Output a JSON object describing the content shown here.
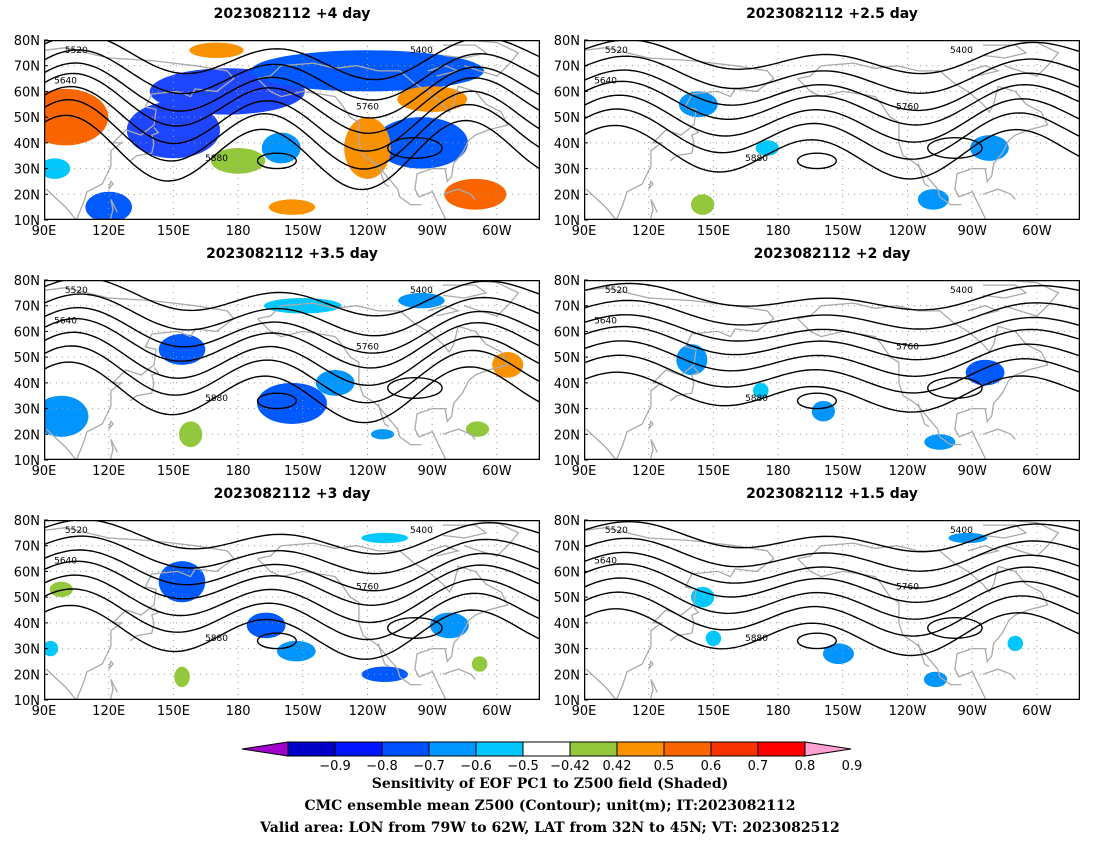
{
  "panels": [
    {
      "title": "2023082112 +4 day",
      "shades": [
        {
          "c": "#fa6500",
          "lon": 100,
          "lat": 50,
          "rx": 11,
          "ry": 11
        },
        {
          "c": "#1e46ff",
          "lon": 150,
          "lat": 45,
          "rx": 12,
          "ry": 11
        },
        {
          "c": "#1e46ff",
          "lon": 175,
          "lat": 60,
          "rx": 20,
          "ry": 9
        },
        {
          "c": "#005aff",
          "lon": 240,
          "lat": 68,
          "rx": 30,
          "ry": 8
        },
        {
          "c": "#005aff",
          "lon": 265,
          "lat": 40,
          "rx": 12,
          "ry": 10
        },
        {
          "c": "#fa9200",
          "lon": 240,
          "lat": 38,
          "rx": 6,
          "ry": 12
        },
        {
          "c": "#fa6500",
          "lon": 290,
          "lat": 20,
          "rx": 8,
          "ry": 6
        },
        {
          "c": "#fa9200",
          "lon": 270,
          "lat": 57,
          "rx": 9,
          "ry": 5
        },
        {
          "c": "#94c83c",
          "lon": 180,
          "lat": 33,
          "rx": 7,
          "ry": 5
        },
        {
          "c": "#005aff",
          "lon": 120,
          "lat": 15,
          "rx": 6,
          "ry": 6
        },
        {
          "c": "#fa9200",
          "lon": 170,
          "lat": 76,
          "rx": 7,
          "ry": 3
        },
        {
          "c": "#00c8ff",
          "lon": 95,
          "lat": 30,
          "rx": 4,
          "ry": 4
        },
        {
          "c": "#fa9200",
          "lon": 205,
          "lat": 15,
          "rx": 6,
          "ry": 3
        },
        {
          "c": "#0095ff",
          "lon": 200,
          "lat": 38,
          "rx": 5,
          "ry": 6
        }
      ]
    },
    {
      "title": "2023082112 +2.5 day",
      "shades": [
        {
          "c": "#0095ff",
          "lon": 143,
          "lat": 55,
          "rx": 5,
          "ry": 5
        },
        {
          "c": "#0095ff",
          "lon": 278,
          "lat": 38,
          "rx": 5,
          "ry": 5
        },
        {
          "c": "#0095ff",
          "lon": 252,
          "lat": 18,
          "rx": 4,
          "ry": 4
        },
        {
          "c": "#00c8ff",
          "lon": 175,
          "lat": 38,
          "rx": 3,
          "ry": 3
        },
        {
          "c": "#94c83c",
          "lon": 145,
          "lat": 16,
          "rx": 3,
          "ry": 4
        }
      ]
    },
    {
      "title": "2023082112 +3.5 day",
      "shades": [
        {
          "c": "#0095ff",
          "lon": 98,
          "lat": 27,
          "rx": 7,
          "ry": 8
        },
        {
          "c": "#005aff",
          "lon": 154,
          "lat": 53,
          "rx": 6,
          "ry": 6
        },
        {
          "c": "#005aff",
          "lon": 205,
          "lat": 32,
          "rx": 9,
          "ry": 8
        },
        {
          "c": "#0095ff",
          "lon": 225,
          "lat": 40,
          "rx": 5,
          "ry": 5
        },
        {
          "c": "#0095ff",
          "lon": 265,
          "lat": 72,
          "rx": 6,
          "ry": 3
        },
        {
          "c": "#00c8ff",
          "lon": 210,
          "lat": 70,
          "rx": 10,
          "ry": 3
        },
        {
          "c": "#fa9200",
          "lon": 305,
          "lat": 47,
          "rx": 4,
          "ry": 5
        },
        {
          "c": "#94c83c",
          "lon": 158,
          "lat": 20,
          "rx": 3,
          "ry": 5
        },
        {
          "c": "#94c83c",
          "lon": 291,
          "lat": 22,
          "rx": 3,
          "ry": 3
        },
        {
          "c": "#0095ff",
          "lon": 247,
          "lat": 20,
          "rx": 3,
          "ry": 2
        }
      ]
    },
    {
      "title": "2023082112 +2 day",
      "shades": [
        {
          "c": "#0095ff",
          "lon": 140,
          "lat": 49,
          "rx": 4,
          "ry": 6
        },
        {
          "c": "#005aff",
          "lon": 276,
          "lat": 44,
          "rx": 5,
          "ry": 5
        },
        {
          "c": "#0095ff",
          "lon": 201,
          "lat": 29,
          "rx": 3,
          "ry": 4
        },
        {
          "c": "#0095ff",
          "lon": 255,
          "lat": 17,
          "rx": 4,
          "ry": 3
        },
        {
          "c": "#00c8ff",
          "lon": 172,
          "lat": 37,
          "rx": 2,
          "ry": 3
        }
      ]
    },
    {
      "title": "2023082112 +3 day",
      "shades": [
        {
          "c": "#005aff",
          "lon": 154,
          "lat": 56,
          "rx": 6,
          "ry": 8
        },
        {
          "c": "#005aff",
          "lon": 193,
          "lat": 39,
          "rx": 5,
          "ry": 5
        },
        {
          "c": "#0095ff",
          "lon": 207,
          "lat": 29,
          "rx": 5,
          "ry": 4
        },
        {
          "c": "#0095ff",
          "lon": 278,
          "lat": 39,
          "rx": 5,
          "ry": 5
        },
        {
          "c": "#005aff",
          "lon": 248,
          "lat": 20,
          "rx": 6,
          "ry": 3
        },
        {
          "c": "#00c8ff",
          "lon": 248,
          "lat": 73,
          "rx": 6,
          "ry": 2
        },
        {
          "c": "#94c83c",
          "lon": 98,
          "lat": 53,
          "rx": 3,
          "ry": 3
        },
        {
          "c": "#94c83c",
          "lon": 154,
          "lat": 19,
          "rx": 2,
          "ry": 4
        },
        {
          "c": "#94c83c",
          "lon": 292,
          "lat": 24,
          "rx": 2,
          "ry": 3
        },
        {
          "c": "#00c8ff",
          "lon": 93,
          "lat": 30,
          "rx": 2,
          "ry": 3
        }
      ]
    },
    {
      "title": "2023082112 +1.5 day",
      "shades": [
        {
          "c": "#0095ff",
          "lon": 208,
          "lat": 28,
          "rx": 4,
          "ry": 4
        },
        {
          "c": "#0095ff",
          "lon": 253,
          "lat": 18,
          "rx": 3,
          "ry": 3
        },
        {
          "c": "#0095ff",
          "lon": 268,
          "lat": 73,
          "rx": 5,
          "ry": 2
        },
        {
          "c": "#00c8ff",
          "lon": 145,
          "lat": 50,
          "rx": 3,
          "ry": 4
        },
        {
          "c": "#00c8ff",
          "lon": 290,
          "lat": 32,
          "rx": 2,
          "ry": 3
        },
        {
          "c": "#00c8ff",
          "lon": 150,
          "lat": 34,
          "rx": 2,
          "ry": 3
        }
      ]
    }
  ],
  "axes": {
    "lat_labels": [
      "10N",
      "20N",
      "30N",
      "40N",
      "50N",
      "60N",
      "70N",
      "80N"
    ],
    "lon_labels": [
      "90E",
      "120E",
      "150E",
      "180",
      "150W",
      "120W",
      "90W",
      "60W"
    ],
    "contour_labels": [
      "5400",
      "5520",
      "5640",
      "5760",
      "5880"
    ]
  },
  "colorbar": {
    "labels": [
      "−0.9",
      "−0.8",
      "−0.7",
      "−0.6",
      "−0.5",
      "−0.42",
      "0.42",
      "0.5",
      "0.6",
      "0.7",
      "0.8",
      "0.9"
    ],
    "colors": [
      "#a000c8",
      "#0000c8",
      "#0014ff",
      "#0050ff",
      "#0096ff",
      "#00c8ff",
      "#ffffff",
      "#94c83c",
      "#fa9200",
      "#fa6500",
      "#fa3200",
      "#ff0000",
      "#ffa0d2"
    ]
  },
  "footer": {
    "line1": "Sensitivity of EOF PC1 to Z500 field (Shaded)",
    "line2": "CMC ensemble mean Z500 (Contour); unit(m); IT:2023082112",
    "line3": "Valid area: LON from 79W to 62W, LAT from 32N to 45N; VT: 2023082512"
  }
}
